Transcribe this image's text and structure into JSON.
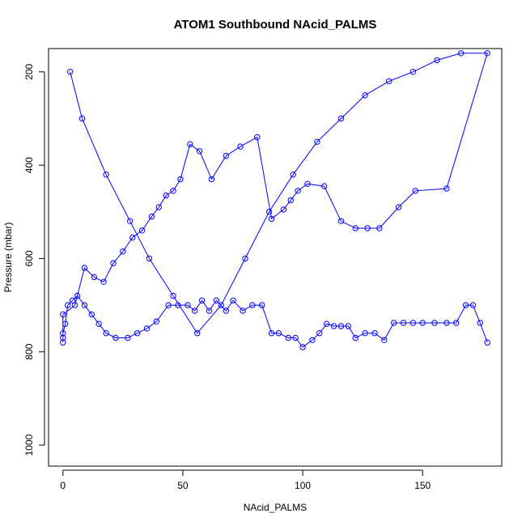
{
  "chart_data": {
    "type": "scatter",
    "title": "ATOM1 Southbound NAcid_PALMS",
    "xlabel": "NAcid_PALMS",
    "ylabel": "Pressure (mbar)",
    "xlim": [
      -6,
      183
    ],
    "ylim": [
      1045,
      150
    ],
    "y_reversed": true,
    "x_ticks": [
      0,
      50,
      100,
      150
    ],
    "y_ticks": [
      200,
      400,
      600,
      800,
      1000
    ],
    "grid": false,
    "legend": "none",
    "point_style": "open-circle",
    "color": "#0000ff",
    "series": [
      {
        "x": [
          3,
          8,
          18,
          28,
          36,
          46,
          56,
          66,
          76,
          86,
          96,
          106,
          116,
          126,
          136,
          146,
          156,
          166,
          177,
          160,
          147,
          140,
          132,
          127,
          122,
          116,
          109,
          102,
          98,
          95,
          92,
          87,
          81,
          74,
          68,
          62,
          57,
          53,
          49,
          46,
          43,
          40,
          37,
          33,
          29,
          25,
          21,
          17,
          13,
          9,
          5,
          0,
          0,
          0,
          0,
          1,
          2,
          4,
          6,
          9,
          12,
          15,
          18,
          22,
          27,
          31,
          35,
          39,
          44,
          48,
          52,
          55,
          58,
          61,
          64,
          68,
          71,
          75,
          79,
          83,
          87,
          90,
          94,
          97,
          100,
          104,
          107,
          110,
          113,
          116,
          119,
          122,
          126,
          130,
          134,
          138,
          142,
          146,
          150,
          155,
          160,
          164,
          168,
          171,
          174,
          177
        ],
        "y": [
          200,
          300,
          420,
          520,
          600,
          680,
          760,
          700,
          600,
          500,
          420,
          350,
          300,
          250,
          220,
          200,
          175,
          160,
          160,
          450,
          455,
          490,
          535,
          535,
          535,
          520,
          445,
          440,
          455,
          475,
          495,
          515,
          340,
          360,
          380,
          430,
          370,
          355,
          430,
          455,
          465,
          490,
          510,
          540,
          555,
          585,
          610,
          650,
          640,
          620,
          700,
          720,
          780,
          770,
          760,
          740,
          700,
          690,
          680,
          700,
          720,
          740,
          760,
          770,
          770,
          760,
          750,
          735,
          700,
          700,
          700,
          712,
          690,
          712,
          690,
          712,
          690,
          712,
          700,
          700,
          760,
          760,
          770,
          770,
          790,
          775,
          760,
          740,
          745,
          745,
          745,
          770,
          760,
          760,
          775,
          738,
          738,
          738,
          738,
          738,
          738,
          738,
          700,
          700,
          738,
          780
        ]
      }
    ]
  }
}
